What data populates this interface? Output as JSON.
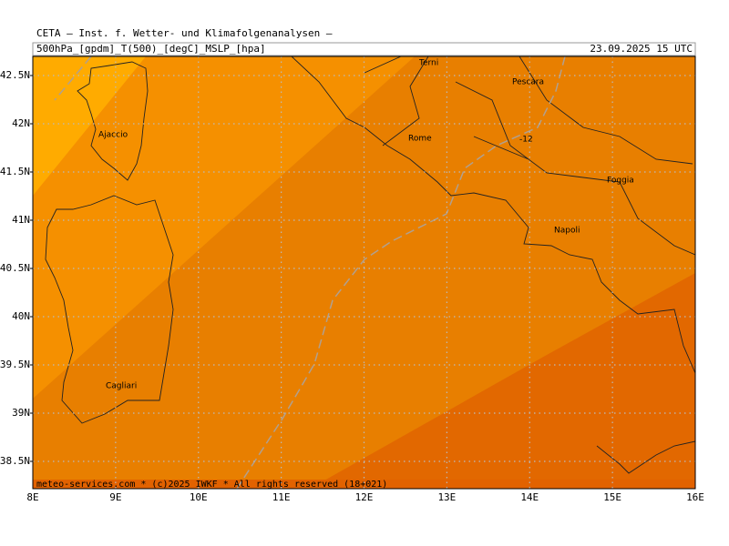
{
  "header": {
    "title": "CETA — Inst. f. Wetter- und Klimafolgenanalysen —",
    "params": "500hPa_[gpdm]_T(500)_[degC]_MSLP_[hpa]",
    "valid": "23.09.2025 15 UTC"
  },
  "map": {
    "lon_labels": [
      "8E",
      "9E",
      "10E",
      "11E",
      "12E",
      "13E",
      "14E",
      "15E",
      "16E"
    ],
    "lat_labels": [
      "42.5N",
      "42N",
      "41.5N",
      "41N",
      "40.5N",
      "40N",
      "39.5N",
      "39N",
      "38.5N"
    ],
    "places": [
      {
        "label": "Terni"
      },
      {
        "label": "Pescara"
      },
      {
        "label": "Rome"
      },
      {
        "label": "Ajaccio"
      },
      {
        "label": "Foggia"
      },
      {
        "label": "Napoli"
      },
      {
        "label": "Cagliari"
      }
    ],
    "isotherm_label": "-12",
    "footer": "meteo-services.com * (c)2025 IWKF * All rights reserved (18+021)"
  }
}
